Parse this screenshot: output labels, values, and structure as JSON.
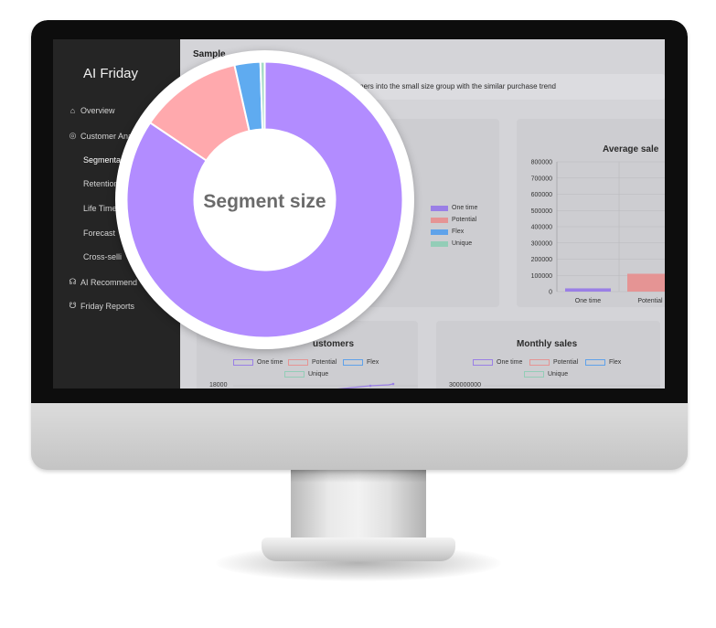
{
  "app": {
    "title": "AI Friday"
  },
  "sidebar": {
    "items": [
      {
        "label": "Overview",
        "icon": "home-icon"
      },
      {
        "label": "Customer Ana",
        "icon": "target-icon"
      },
      {
        "label": "Segmenta",
        "icon": ""
      },
      {
        "label": "Retention",
        "icon": ""
      },
      {
        "label": "Life Time",
        "icon": ""
      },
      {
        "label": "Forecast",
        "icon": ""
      },
      {
        "label": "Cross-selli",
        "icon": ""
      },
      {
        "label": "AI Recommend",
        "icon": "brain-icon"
      },
      {
        "label": "Friday Reports",
        "icon": "report-icon"
      }
    ]
  },
  "main": {
    "page_title": "Sample",
    "description": "mers into the small size group with the similar purchase trend"
  },
  "legend_series": [
    {
      "name": "One time",
      "color": "#9a7fe6"
    },
    {
      "name": "Potential",
      "color": "#e59494"
    },
    {
      "name": "Flex",
      "color": "#5fa2ea"
    },
    {
      "name": "Unique",
      "color": "#93cdb7"
    }
  ],
  "customers_chart": {
    "title_fragment": "ustomers",
    "y_tick": "18000"
  },
  "average_sales_chart": {
    "title_fragment": "Average sale",
    "y_ticks": [
      "800000",
      "700000",
      "600000",
      "500000",
      "400000",
      "300000",
      "200000",
      "100000",
      "0"
    ],
    "x_labels": [
      "One time",
      "Potential"
    ]
  },
  "monthly_sales_chart": {
    "title": "Monthly sales",
    "y_tick": "300000000"
  },
  "chart_data": [
    {
      "type": "pie",
      "title": "Segment size",
      "categories": [
        "One time",
        "Potential",
        "Flex",
        "Unique"
      ],
      "values": [
        84,
        12,
        3,
        0.5
      ],
      "colors": [
        "#b28cff",
        "#ffa9ad",
        "#5fabf0",
        "#a4dbc6"
      ]
    },
    {
      "type": "bar",
      "title": "Average sale",
      "categories": [
        "One time",
        "Potential"
      ],
      "values": [
        20000,
        110000
      ],
      "ylim": [
        0,
        800000
      ],
      "colors": [
        "#9a7fe6",
        "#e59494"
      ]
    }
  ]
}
